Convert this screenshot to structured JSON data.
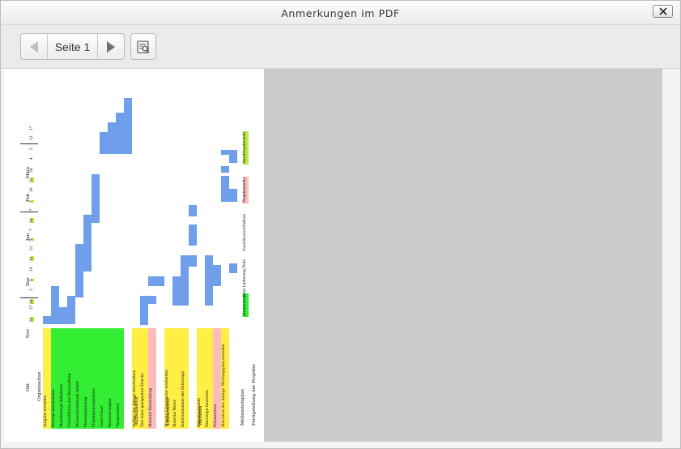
{
  "window": {
    "title": "Anmerkungen im PDF"
  },
  "toolbar": {
    "page_label": "Seite 1"
  },
  "icons": {
    "close": "close-icon",
    "prev": "arrow-left-icon",
    "next": "arrow-right-icon",
    "search": "search-document-icon"
  },
  "colors": {
    "bar": "#6f9eea",
    "green": "#33ee33",
    "yellow": "#ffee44",
    "pink": "#ffbbbb",
    "lime": "#bbee44"
  },
  "gantt": {
    "months": [
      "Okt",
      "Nov",
      "Dez",
      "Jan",
      "Feb",
      "März"
    ],
    "days": [
      "22",
      "27",
      "29",
      "3",
      "5",
      "10",
      "12",
      "21",
      "3",
      "7",
      "10",
      "17",
      "7",
      "10",
      "21",
      "24",
      "4",
      "5",
      "12",
      "17"
    ],
    "groups": [
      {
        "heading": "Organisation",
        "items": [
          "Aufgabe erstellen",
          "Konzept beschreiben",
          "Messkonzept definieren",
          "Durchführen der Beschaffung",
          "Wissensdatenbank Arbeit",
          "Personalplanung",
          "Projektplanungsdatei",
          "Gantt-Chart",
          "Ressourcenplan",
          "Testprotokoll"
        ]
      },
      {
        "heading": "Aufbaulektor",
        "items": [
          "Aufbau der Anlage beschreiben",
          "Test einer geeigneten Strecke",
          "Material Entwicklung"
        ]
      },
      {
        "heading": "Linearmotor",
        "items": [
          "Theorie Linearmotor erarbeiten",
          "Material Motor",
          "Inbetriebnahme des Fahrzeugs"
        ]
      },
      {
        "heading": "Weiteres",
        "items": [
          "Fahrzeugmodell",
          "Fahrzeuge bewerten",
          "Präsentation",
          "Abschluss der Anlage, Wartungsplan erstellen"
        ]
      }
    ],
    "legend_label": "Meilensteinplan",
    "tags": [
      "Meilenstein",
      "Mail Lieferung Teile",
      "Ausschussverfahren",
      "Projektwoche",
      "Abschlussbericht"
    ],
    "footer": "Fertigstellung der Projekte"
  }
}
